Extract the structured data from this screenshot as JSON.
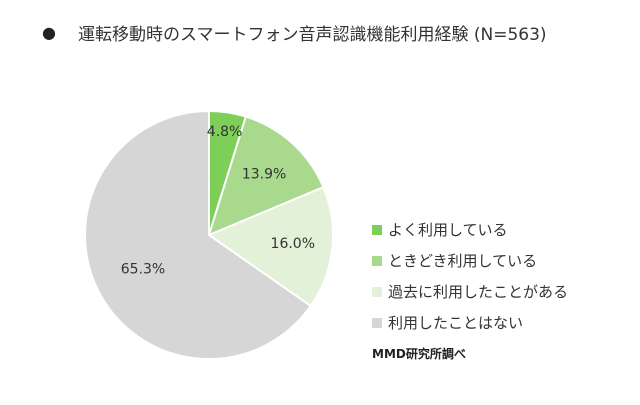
{
  "title": {
    "bullet": "●",
    "text": "運転移動時のスマートフォン音声認識機能利用経験 (N=563)"
  },
  "source": "MMD研究所調べ",
  "chart_data": {
    "type": "pie",
    "title": "運転移動時のスマートフォン音声認識機能利用経験 (N=563)",
    "slices": [
      {
        "label": "よく利用している",
        "value": 4.8,
        "display": "4.8%",
        "color": "#7dcf58"
      },
      {
        "label": "ときどき利用している",
        "value": 13.9,
        "display": "13.9%",
        "color": "#a8d98c"
      },
      {
        "label": "過去に利用したことがある",
        "value": 16.0,
        "display": "16.0%",
        "color": "#e3f1d8"
      },
      {
        "label": "利用したことはない",
        "value": 65.3,
        "display": "65.3%",
        "color": "#d6d6d6"
      }
    ],
    "start": "top",
    "direction": "clockwise",
    "legend_position": "right"
  }
}
